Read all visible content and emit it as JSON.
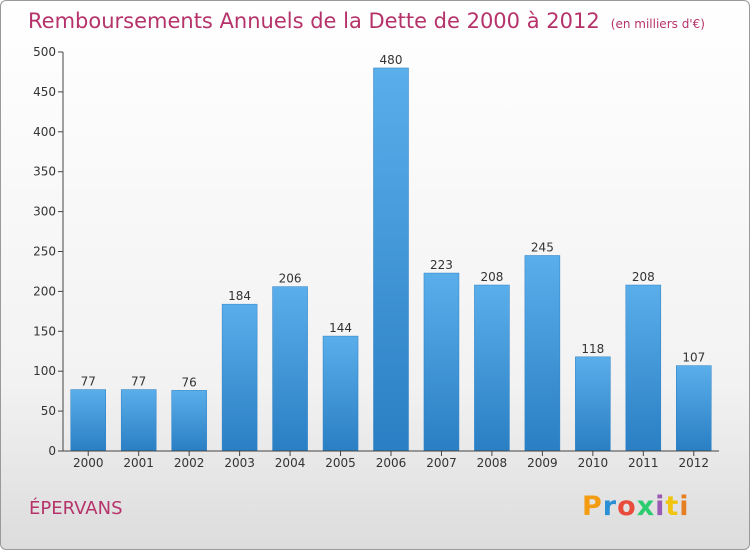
{
  "chart_data": {
    "type": "bar",
    "title": "Remboursements Annuels de la Dette de 2000 à 2012",
    "unit": "(en milliers d'€)",
    "categories": [
      "2000",
      "2001",
      "2002",
      "2003",
      "2004",
      "2005",
      "2006",
      "2007",
      "2008",
      "2009",
      "2010",
      "2011",
      "2012"
    ],
    "values": [
      77,
      77,
      76,
      184,
      206,
      144,
      480,
      223,
      208,
      245,
      118,
      208,
      107
    ],
    "ylim": [
      0,
      500
    ],
    "yticks": [
      0,
      50,
      100,
      150,
      200,
      250,
      300,
      350,
      400,
      450,
      500
    ],
    "grid": false,
    "bar_color": "#3a95dc"
  },
  "commune": "ÉPERVANS",
  "logo": {
    "text": "Proxiti",
    "letter_colors": [
      "#f39c12",
      "#2b8fd6",
      "#e74c3c",
      "#2ecc71",
      "#9b59b6",
      "#f1c40f",
      "#e67e22"
    ]
  }
}
